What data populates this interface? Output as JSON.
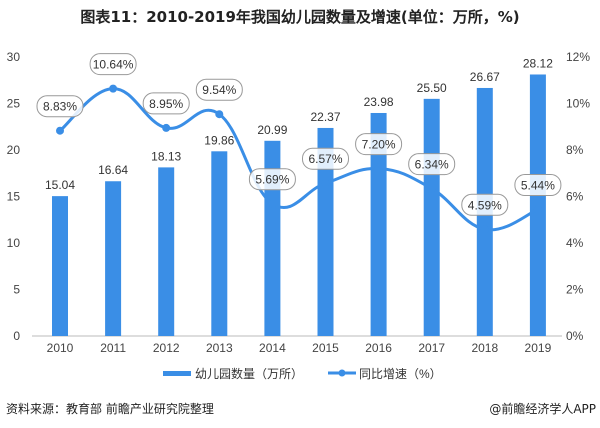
{
  "title": "图表11：2010-2019年我国幼儿园数量及增速(单位：万所，%)",
  "source": "资料来源：教育部 前瞻产业研究院整理",
  "brand": "@前瞻经济学人APP",
  "chart_data": {
    "type": "bar+line",
    "categories": [
      "2010",
      "2011",
      "2012",
      "2013",
      "2014",
      "2015",
      "2016",
      "2017",
      "2018",
      "2019"
    ],
    "series": [
      {
        "name": "幼儿园数量（万所）",
        "type": "bar",
        "axis": "left",
        "color": "#3a8ee6",
        "values": [
          15.04,
          16.64,
          18.13,
          19.86,
          20.99,
          22.37,
          23.98,
          25.5,
          26.67,
          28.12
        ],
        "labels": [
          "15.04",
          "16.64",
          "18.13",
          "19.86",
          "20.99",
          "22.37",
          "23.98",
          "25.50",
          "26.67",
          "28.12"
        ]
      },
      {
        "name": "同比增速（%）",
        "type": "line",
        "axis": "right",
        "color": "#3a8ee6",
        "values": [
          8.83,
          10.64,
          8.95,
          9.54,
          5.69,
          6.57,
          7.2,
          6.34,
          4.59,
          5.44
        ],
        "labels": [
          "8.83%",
          "10.64%",
          "8.95%",
          "9.54%",
          "5.69%",
          "6.57%",
          "7.20%",
          "6.34%",
          "4.59%",
          "5.44%"
        ]
      }
    ],
    "left_axis": {
      "ylim": [
        0,
        30
      ],
      "ticks": [
        "0",
        "5",
        "10",
        "15",
        "20",
        "25",
        "30"
      ]
    },
    "right_axis": {
      "ylim": [
        0,
        12
      ],
      "ticks": [
        "0%",
        "2%",
        "4%",
        "6%",
        "8%",
        "10%",
        "12%"
      ]
    },
    "legend": "bottom-center",
    "grid": false
  }
}
